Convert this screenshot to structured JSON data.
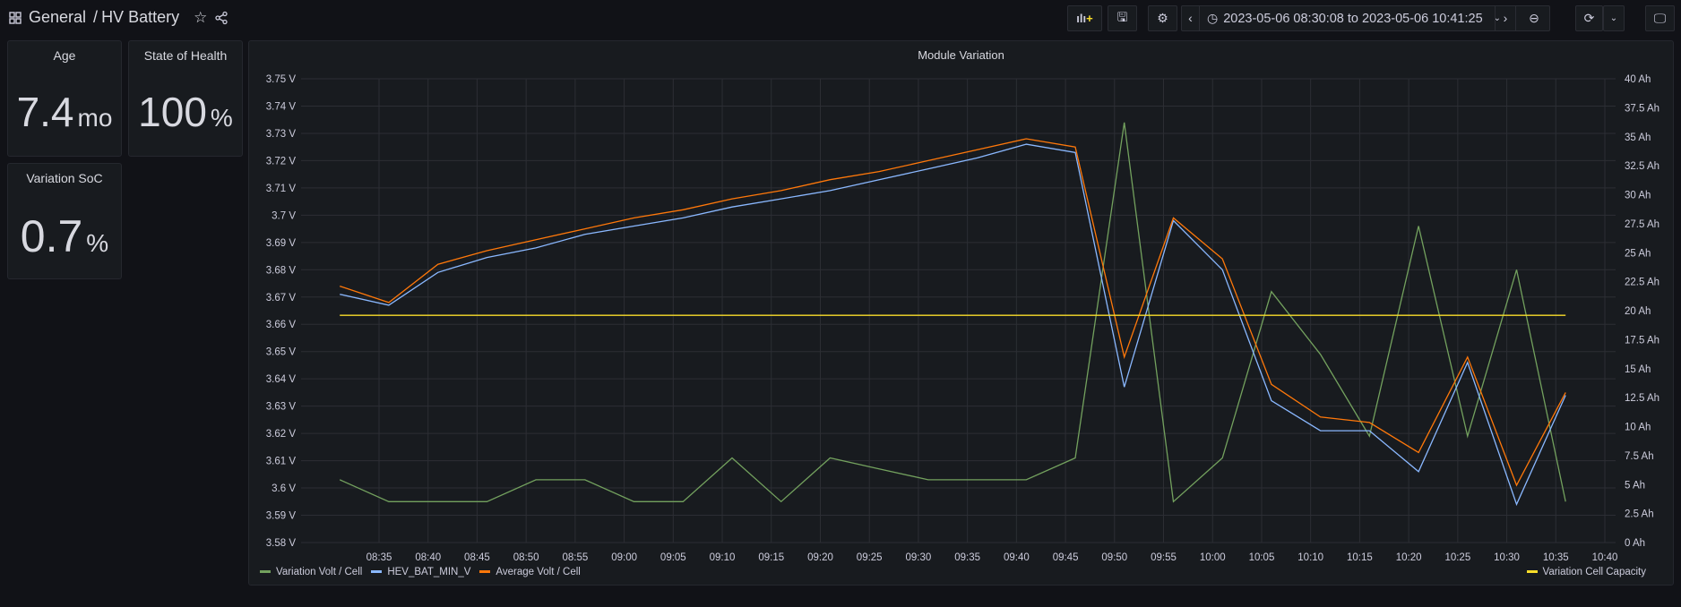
{
  "header": {
    "folder": "General",
    "separator": "/",
    "title": "HV Battery",
    "time_range": "2023-05-06 08:30:08 to 2023-05-06 10:41:25"
  },
  "panels": [
    {
      "title": "Age",
      "value": "7.4",
      "unit": "mo"
    },
    {
      "title": "State of Health",
      "value": "100",
      "unit": "%"
    },
    {
      "title": "Variation SoC",
      "value": "0.7",
      "unit": "%"
    }
  ],
  "colors": {
    "green": "#73a15e",
    "blue": "#8ab8ff",
    "orange": "#ff780a",
    "yellow": "#fade2a"
  },
  "chart_data": {
    "type": "line",
    "title": "Module Variation",
    "x": [
      "08:31",
      "08:36",
      "08:41",
      "08:46",
      "08:51",
      "08:56",
      "09:01",
      "09:06",
      "09:11",
      "09:16",
      "09:21",
      "09:26",
      "09:31",
      "09:36",
      "09:41",
      "09:46",
      "09:51",
      "09:56",
      "10:01",
      "10:06",
      "10:11",
      "10:16",
      "10:21",
      "10:26",
      "10:31",
      "10:36"
    ],
    "x_ticks": [
      "08:35",
      "08:40",
      "08:45",
      "08:50",
      "08:55",
      "09:00",
      "09:05",
      "09:10",
      "09:15",
      "09:20",
      "09:25",
      "09:30",
      "09:35",
      "09:40",
      "09:45",
      "09:50",
      "09:55",
      "10:00",
      "10:05",
      "10:10",
      "10:15",
      "10:20",
      "10:25",
      "10:30",
      "10:35",
      "10:40"
    ],
    "y_left": {
      "ticks": [
        "3.58 V",
        "3.59 V",
        "3.6 V",
        "3.61 V",
        "3.62 V",
        "3.63 V",
        "3.64 V",
        "3.65 V",
        "3.66 V",
        "3.67 V",
        "3.68 V",
        "3.69 V",
        "3.7 V",
        "3.71 V",
        "3.72 V",
        "3.73 V",
        "3.74 V",
        "3.75 V"
      ],
      "range": [
        3.58,
        3.75
      ]
    },
    "y_right": {
      "ticks": [
        "0 Ah",
        "2.5 Ah",
        "5 Ah",
        "7.5 Ah",
        "10 Ah",
        "12.5 Ah",
        "15 Ah",
        "17.5 Ah",
        "20 Ah",
        "22.5 Ah",
        "25 Ah",
        "27.5 Ah",
        "30 Ah",
        "32.5 Ah",
        "35 Ah",
        "37.5 Ah",
        "40 Ah"
      ],
      "range": [
        0,
        40
      ]
    },
    "series": [
      {
        "name": "Variation Volt / Cell",
        "axis": "left",
        "color": "#73a15e",
        "values": [
          3.603,
          3.595,
          3.595,
          3.595,
          3.603,
          3.603,
          3.595,
          3.595,
          3.611,
          3.595,
          3.611,
          3.607,
          3.603,
          3.603,
          3.603,
          3.611,
          3.734,
          3.595,
          3.611,
          3.672,
          3.649,
          3.619,
          3.696,
          3.619,
          3.68,
          3.595
        ]
      },
      {
        "name": "HEV_BAT_MIN_V",
        "axis": "left",
        "color": "#8ab8ff",
        "values": [
          3.671,
          3.667,
          3.679,
          3.6845,
          3.688,
          3.693,
          3.696,
          3.699,
          3.703,
          3.706,
          3.709,
          3.713,
          3.717,
          3.721,
          3.726,
          3.723,
          3.637,
          3.698,
          3.68,
          3.632,
          3.621,
          3.621,
          3.606,
          3.646,
          3.594,
          3.634
        ]
      },
      {
        "name": "Average Volt / Cell",
        "axis": "left",
        "color": "#ff780a",
        "values": [
          3.674,
          3.668,
          3.682,
          3.687,
          3.691,
          3.695,
          3.699,
          3.702,
          3.706,
          3.709,
          3.713,
          3.716,
          3.72,
          3.724,
          3.728,
          3.725,
          3.648,
          3.699,
          3.684,
          3.638,
          3.626,
          3.624,
          3.613,
          3.648,
          3.601,
          3.635
        ]
      },
      {
        "name": "Variation Cell Capacity",
        "axis": "right",
        "color": "#fade2a",
        "values": [
          19.6,
          19.6,
          19.6,
          19.6,
          19.6,
          19.6,
          19.6,
          19.6,
          19.6,
          19.6,
          19.6,
          19.6,
          19.6,
          19.6,
          19.6,
          19.6,
          19.6,
          19.6,
          19.6,
          19.6,
          19.6,
          19.6,
          19.6,
          19.6,
          19.6,
          19.6
        ]
      }
    ],
    "legend_placement": "bottom"
  }
}
